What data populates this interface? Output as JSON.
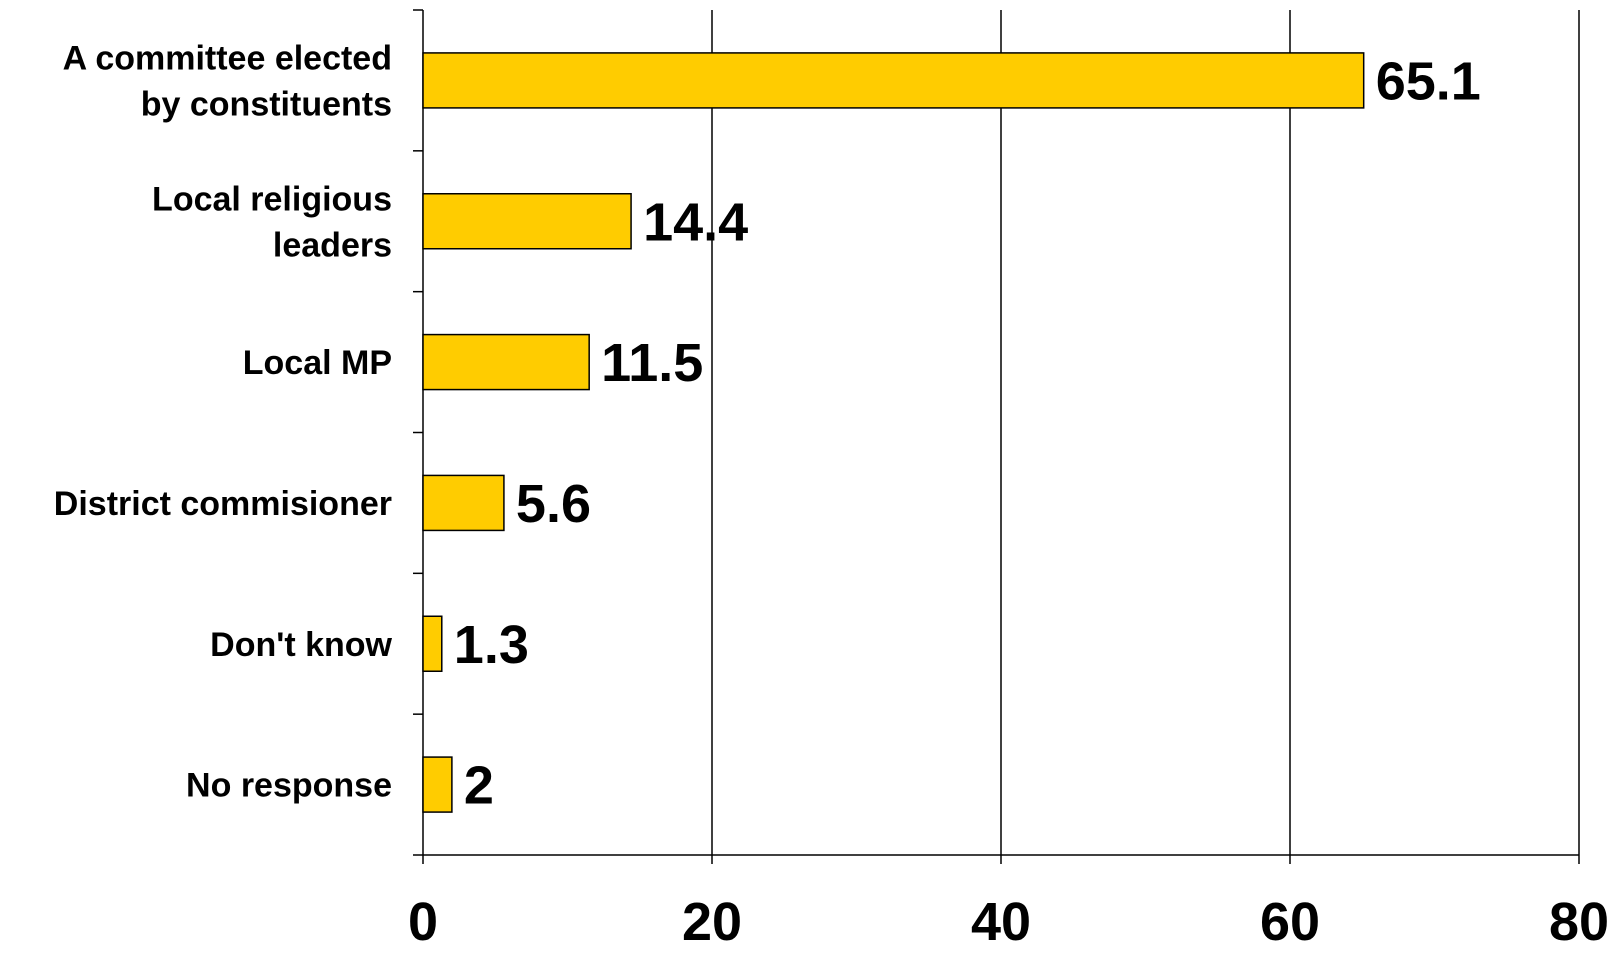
{
  "chart_data": {
    "type": "bar",
    "orientation": "horizontal",
    "title": "",
    "xlabel": "",
    "ylabel": "",
    "categories": [
      [
        "A committee elected",
        "by constituents"
      ],
      [
        "Local religious",
        "leaders"
      ],
      [
        "Local MP"
      ],
      [
        "District commisioner"
      ],
      [
        "Don't know"
      ],
      [
        "No response"
      ]
    ],
    "values": [
      65.1,
      14.4,
      11.5,
      5.6,
      1.3,
      2
    ],
    "value_labels": [
      "65.1",
      "14.4",
      "11.5",
      "5.6",
      "1.3",
      "2"
    ],
    "xlim": [
      0,
      80
    ],
    "xticks": [
      0,
      20,
      40,
      60,
      80
    ],
    "xtick_labels": [
      "0",
      "20",
      "40",
      "60",
      "80"
    ],
    "grid": "vertical",
    "legend": "none",
    "colors": {
      "bar_fill": "#FFCC00",
      "bar_stroke": "#000000",
      "grid": "#000000",
      "text": "#000000"
    }
  }
}
